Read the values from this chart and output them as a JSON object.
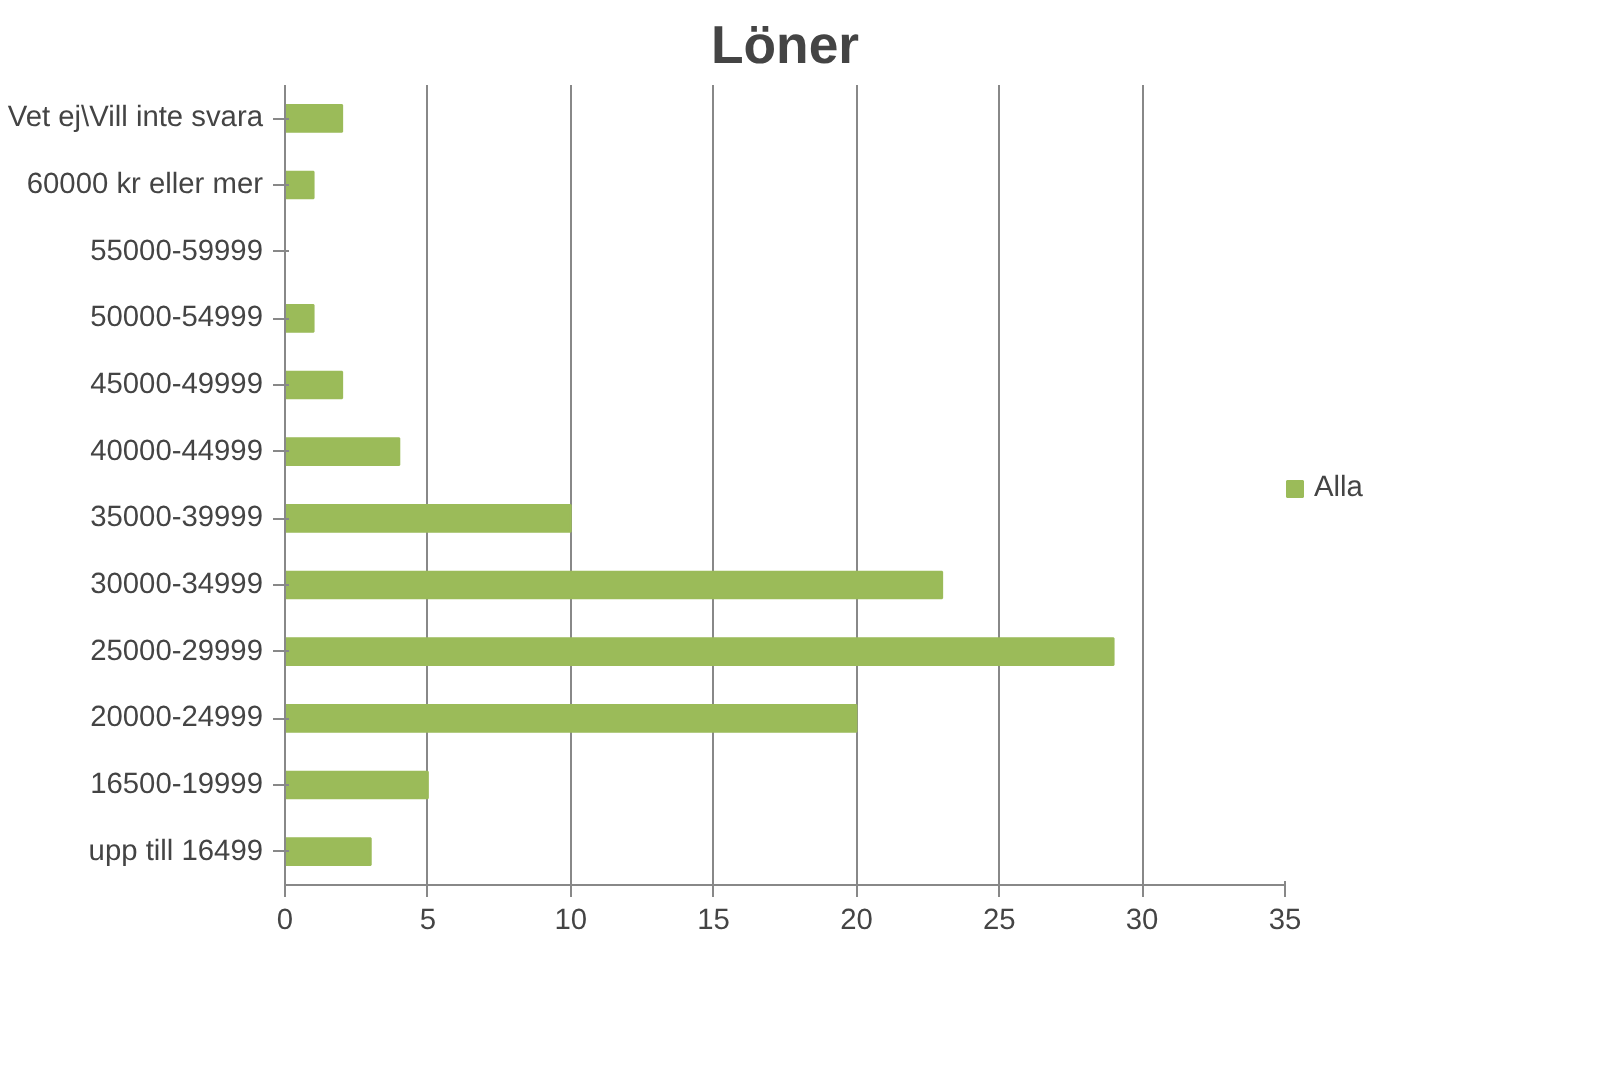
{
  "chart_data": {
    "type": "bar",
    "orientation": "horizontal",
    "title": "Löner",
    "categories": [
      "Vet ej\\Vill inte svara",
      "60000 kr eller mer",
      "55000-59999",
      "50000-54999",
      "45000-49999",
      "40000-44999",
      "35000-39999",
      "30000-34999",
      "25000-29999",
      "20000-24999",
      "16500-19999",
      "upp till 16499"
    ],
    "series": [
      {
        "name": "Alla",
        "color": "#9bbb59",
        "values": [
          2,
          1,
          0,
          1,
          2,
          4,
          10,
          23,
          29,
          20,
          5,
          3
        ]
      }
    ],
    "xlim": [
      0,
      35
    ],
    "xticks": [
      0,
      5,
      10,
      15,
      20,
      25,
      30,
      35
    ],
    "grid": "x",
    "legend": "right"
  }
}
